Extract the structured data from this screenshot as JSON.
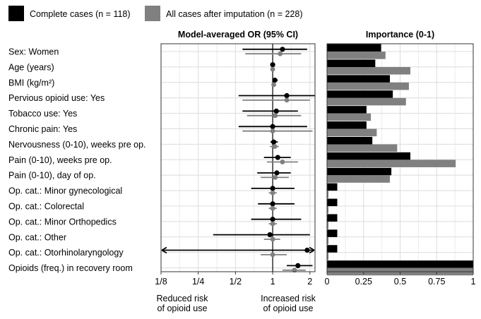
{
  "chart_data": [
    {
      "type": "forest",
      "title": "Model-averaged OR (95% CI)",
      "x_scale": "log2",
      "xlim": [
        0.125,
        2.2
      ],
      "x_ticks": [
        0.125,
        0.25,
        0.5,
        1,
        2
      ],
      "x_tick_labels": [
        "1/8",
        "1/4",
        "1/2",
        "1",
        "2"
      ],
      "reference_line": 1,
      "grid": true,
      "annotations": [
        {
          "lines": [
            "Reduced risk",
            "of opioid use"
          ],
          "position": "bottom-left"
        },
        {
          "lines": [
            "Increased risk",
            "of opioid use"
          ],
          "position": "bottom-right"
        }
      ],
      "legend": {
        "placement": "top-left",
        "entries": [
          {
            "label": "Complete cases (n = 118)",
            "color": "#000000"
          },
          {
            "label": "All cases after imputation (n = 228)",
            "color": "#808080"
          }
        ]
      },
      "categories": [
        "Sex: Women",
        "Age (years)",
        "BMI (kg/m²)",
        "Pervious opioid use: Yes",
        "Tobacco use: Yes",
        "Chronic pain: Yes",
        "Nervousness (0-10), weeks pre op.",
        "Pain (0-10), weeks pre op.",
        "Pain (0-10), day of op.",
        "Op. cat.: Minor gynecological",
        "Op. cat.: Colorectal",
        "Op. cat.: Minor Orthopedics",
        "Op. cat.: Other",
        "Op. cat.: Otorhinolaryngology",
        "Opioids (freq.) in recovery room"
      ],
      "series": [
        {
          "name": "Complete cases (n = 118)",
          "color": "#000000",
          "estimate": [
            1.2,
            1.0,
            1.04,
            1.3,
            1.07,
            1.0,
            1.02,
            1.1,
            1.08,
            1.0,
            1.0,
            1.0,
            0.95,
            1.9,
            1.6
          ],
          "lower": [
            0.57,
            1.0,
            1.0,
            0.53,
            0.57,
            0.53,
            0.96,
            0.85,
            0.75,
            0.67,
            0.76,
            0.67,
            0.33,
            0.125,
            1.3
          ],
          "upper": [
            1.9,
            1.0,
            1.1,
            2.2,
            1.6,
            1.9,
            1.1,
            1.4,
            1.4,
            1.5,
            1.5,
            1.7,
            2.0,
            2.2,
            2.1
          ],
          "left_arrow": [
            false,
            false,
            false,
            false,
            false,
            false,
            false,
            false,
            false,
            false,
            false,
            false,
            false,
            true,
            false
          ],
          "right_arrow": [
            false,
            false,
            false,
            false,
            false,
            false,
            false,
            false,
            false,
            false,
            false,
            false,
            false,
            true,
            false
          ]
        },
        {
          "name": "All cases after imputation (n = 228)",
          "color": "#808080",
          "estimate": [
            1.15,
            1.0,
            1.02,
            1.3,
            1.05,
            1.0,
            1.04,
            1.2,
            1.05,
            1.0,
            1.0,
            1.0,
            1.0,
            1.0,
            1.5
          ],
          "lower": [
            0.6,
            1.0,
            1.0,
            0.57,
            0.62,
            0.57,
            0.95,
            0.9,
            0.8,
            0.93,
            0.93,
            0.93,
            0.85,
            0.8,
            1.2
          ],
          "upper": [
            1.7,
            1.0,
            1.05,
            2.0,
            1.7,
            2.1,
            1.12,
            1.6,
            1.35,
            1.08,
            1.08,
            1.08,
            1.15,
            1.3,
            1.85
          ],
          "left_arrow": [
            false,
            false,
            false,
            false,
            false,
            false,
            false,
            false,
            false,
            false,
            false,
            false,
            false,
            false,
            false
          ],
          "right_arrow": [
            false,
            false,
            false,
            false,
            false,
            false,
            false,
            false,
            false,
            false,
            false,
            false,
            false,
            false,
            false
          ]
        }
      ]
    },
    {
      "type": "bar",
      "orientation": "horizontal",
      "title": "Importance (0-1)",
      "xlim": [
        0,
        1
      ],
      "x_ticks": [
        0,
        0.25,
        0.5,
        0.75,
        1
      ],
      "x_tick_labels": [
        "0",
        "0.25",
        "0.5",
        "0.75",
        "1"
      ],
      "grid": true,
      "series": [
        {
          "name": "Complete cases (n = 118)",
          "color": "#000000",
          "values": [
            0.37,
            0.33,
            0.43,
            0.45,
            0.27,
            0.27,
            0.31,
            0.57,
            0.44,
            0.07,
            0.07,
            0.07,
            0.07,
            0.07,
            1.0
          ]
        },
        {
          "name": "All cases after imputation (n = 228)",
          "color": "#808080",
          "values": [
            0.4,
            0.57,
            0.56,
            0.54,
            0.3,
            0.34,
            0.48,
            0.88,
            0.43,
            0.01,
            0.01,
            0.01,
            0.01,
            0.01,
            1.0
          ]
        }
      ]
    }
  ]
}
